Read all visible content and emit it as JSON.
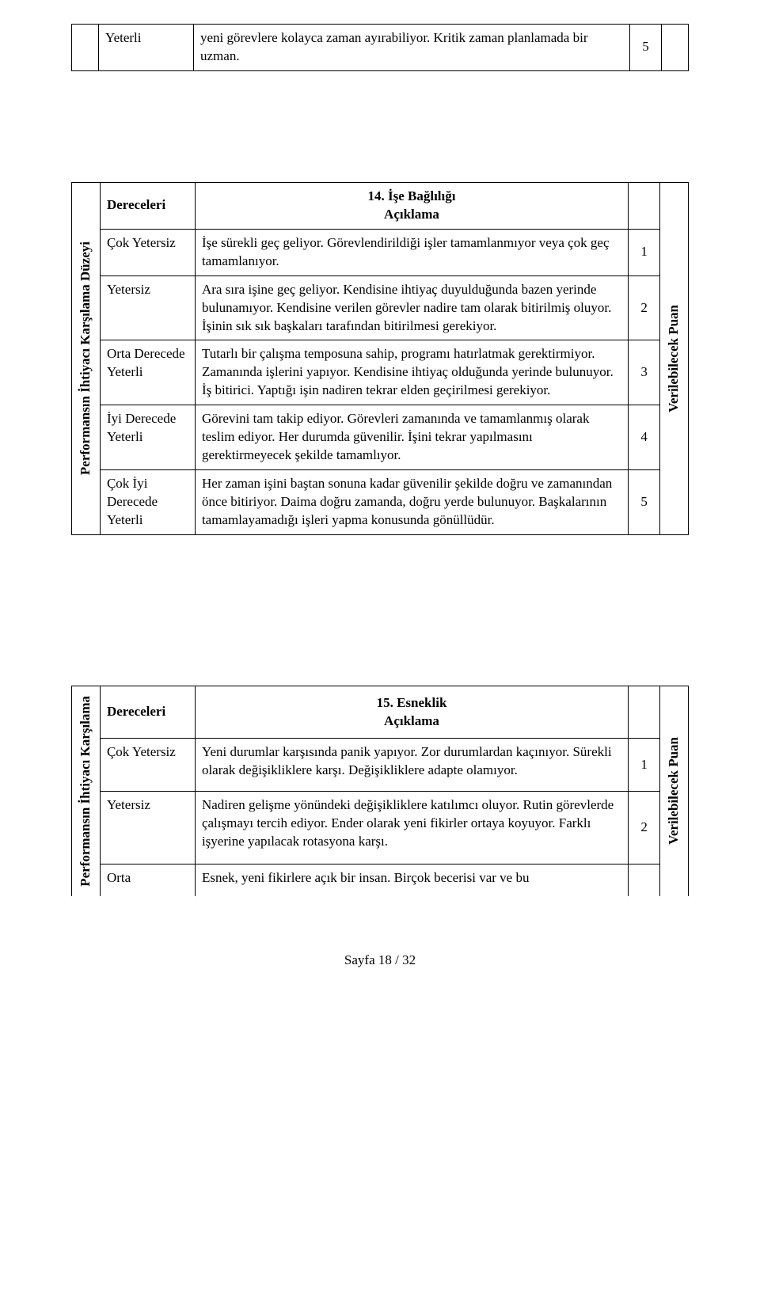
{
  "topRow": {
    "rating": "Yeterli",
    "desc": "yeni görevlere kolayca zaman ayırabiliyor. Kritik zaman planlamada bir uzman.",
    "score": "5"
  },
  "section14": {
    "title": "14. İşe Bağlılığı",
    "leftLabel": "Performansın İhtiyacı Karşılama Düzeyi",
    "rightLabel": "Verilebilecek Puan",
    "levelsHeader": "Dereceleri",
    "descHeader": "Açıklama",
    "rows": [
      {
        "rating": "Çok Yetersiz",
        "desc": "İşe sürekli geç geliyor. Görevlendirildiği işler tamamlanmıyor veya çok geç tamamlanıyor.",
        "score": "1"
      },
      {
        "rating": "Yetersiz",
        "desc": "Ara sıra işine geç geliyor. Kendisine ihtiyaç duyulduğunda bazen yerinde bulunamıyor. Kendisine verilen görevler nadire tam olarak bitirilmiş oluyor. İşinin sık sık başkaları tarafından bitirilmesi gerekiyor.",
        "score": "2"
      },
      {
        "rating": "Orta Derecede Yeterli",
        "desc": "Tutarlı bir çalışma temposuna sahip, programı hatırlatmak gerektirmiyor. Zamanında işlerini yapıyor. Kendisine ihtiyaç olduğunda yerinde bulunuyor. İş bitirici. Yaptığı işin nadiren tekrar elden geçirilmesi gerekiyor.",
        "score": "3"
      },
      {
        "rating": "İyi Derecede Yeterli",
        "desc": "Görevini tam takip ediyor. Görevleri zamanında ve tamamlanmış olarak teslim ediyor. Her durumda güvenilir. İşini tekrar yapılmasını gerektirmeyecek şekilde tamamlıyor.",
        "score": "4"
      },
      {
        "rating": "Çok İyi Derecede Yeterli",
        "desc": "Her zaman işini baştan sonuna kadar güvenilir şekilde doğru ve zamanından önce bitiriyor. Daima doğru zamanda, doğru yerde bulunuyor. Başkalarının tamamlayamadığı işleri yapma konusunda gönüllüdür.",
        "score": "5"
      }
    ]
  },
  "section15": {
    "title": "15. Esneklik",
    "leftLabel": "Performansın İhtiyacı Karşılama",
    "rightLabel": "Verilebilecek Puan",
    "levelsHeader": "Dereceleri",
    "descHeader": "Açıklama",
    "rows": [
      {
        "rating": "Çok Yetersiz",
        "desc": "Yeni durumlar karşısında panik yapıyor. Zor durumlardan kaçınıyor. Sürekli olarak değişikliklere karşı. Değişikliklere adapte olamıyor.",
        "score": "1"
      },
      {
        "rating": "Yetersiz",
        "desc": "Nadiren gelişme yönündeki değişikliklere katılımcı oluyor. Rutin görevlerde çalışmayı tercih ediyor. Ender olarak yeni fikirler ortaya koyuyor. Farklı işyerine yapılacak rotasyona karşı.",
        "score": "2"
      },
      {
        "rating": "Orta",
        "desc": "Esnek, yeni fikirlere açık bir insan. Birçok becerisi var ve bu",
        "score": ""
      }
    ]
  },
  "footer": "Sayfa 18 / 32"
}
